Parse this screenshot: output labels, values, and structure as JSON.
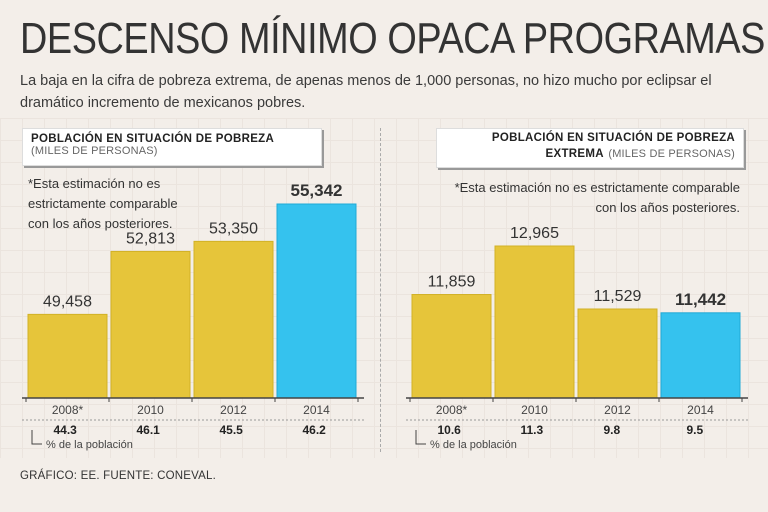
{
  "headline": "DESCENSO MÍNIMO OPACA PROGRAMAS",
  "subtitle": "La baja en la cifra de pobreza extrema, de apenas menos de 1,000 personas, no hizo mucho por eclipsar el dramático incremento de mexicanos pobres.",
  "footer": "GRÁFICO: EE. FUENTE: CONEVAL.",
  "colors": {
    "bar": "#e6c53a",
    "highlight": "#35c2ee",
    "axis": "#444"
  },
  "chart_data": [
    {
      "type": "bar",
      "title": "POBLACIÓN EN SITUACIÓN DE POBREZA",
      "title_line2": "",
      "units": "(MILES DE PERSONAS)",
      "note": [
        "*Esta estimación no es",
        "estrictamente comparable",
        "con los años posteriores."
      ],
      "categories": [
        "2008*",
        "2010",
        "2012",
        "2014"
      ],
      "values": [
        49458,
        52813,
        53350,
        55342
      ],
      "value_labels": [
        "49,458",
        "52,813",
        "53,350",
        "55,342"
      ],
      "highlight_index": 3,
      "ylim": [
        45000,
        56000
      ],
      "percent": [
        "44.3",
        "46.1",
        "45.5",
        "46.2"
      ],
      "percent_label": "% de la población"
    },
    {
      "type": "bar",
      "title": "POBLACIÓN EN SITUACIÓN DE POBREZA",
      "title_line2": "EXTREMA",
      "units": "(MILES DE PERSONAS)",
      "note": [
        "*Esta estimación no es estrictamente comparable",
        "con los años posteriores."
      ],
      "categories": [
        "2008*",
        "2010",
        "2012",
        "2014"
      ],
      "values": [
        11859,
        12965,
        11529,
        11442
      ],
      "value_labels": [
        "11,859",
        "12,965",
        "11,529",
        "11,442"
      ],
      "highlight_index": 3,
      "ylim": [
        9500,
        13100
      ],
      "percent": [
        "10.6",
        "11.3",
        "9.8",
        "9.5"
      ],
      "percent_label": "% de la población"
    }
  ]
}
